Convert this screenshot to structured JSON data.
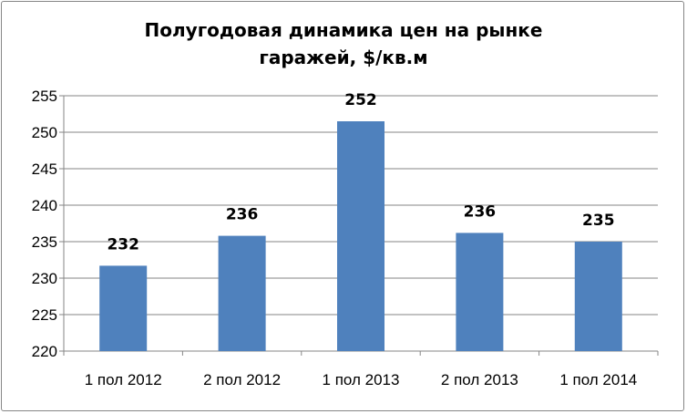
{
  "chart_data": {
    "type": "bar",
    "title_lines": [
      "Полугодовая динамика цен на рынке",
      "гаражей, $/кв.м"
    ],
    "categories": [
      "1 пол 2012",
      "2 пол 2012",
      "1 пол 2013",
      "2 пол 2013",
      "1 пол 2014"
    ],
    "values": [
      231.7,
      235.8,
      251.5,
      236.2,
      235.0
    ],
    "data_labels": [
      "232",
      "236",
      "252",
      "236",
      "235"
    ],
    "ylim": [
      220,
      255
    ],
    "yticks": [
      220,
      225,
      230,
      235,
      240,
      245,
      250,
      255
    ],
    "grid": true,
    "legend": "none",
    "bar_color": "#4F81BD",
    "grid_color": "#868686"
  }
}
